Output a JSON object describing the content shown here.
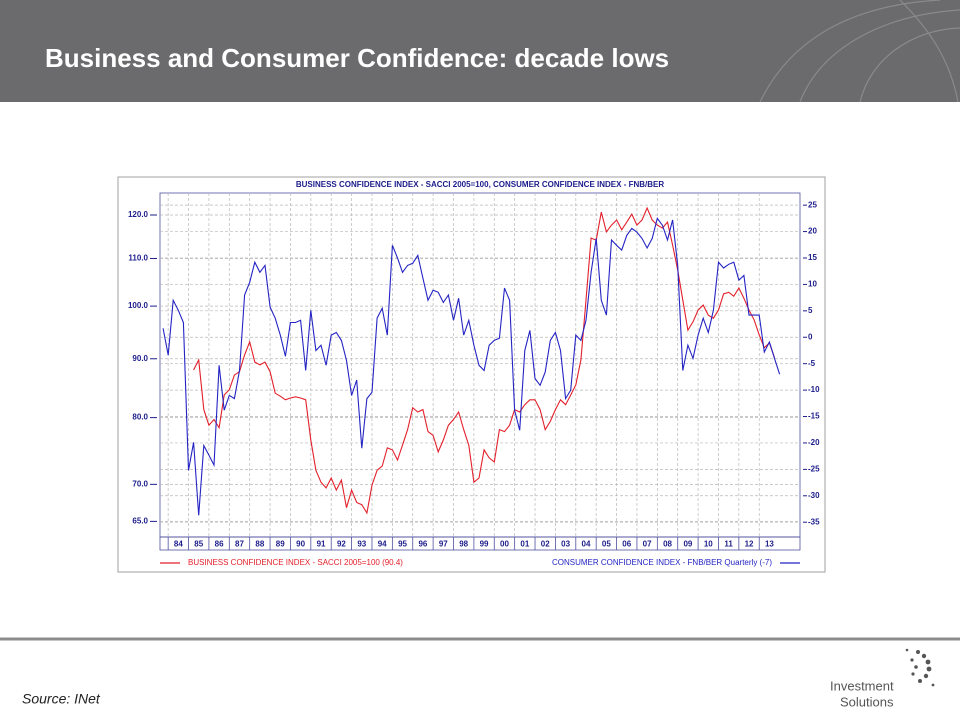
{
  "header": {
    "title": "Business and Consumer Confidence: decade lows"
  },
  "footer": {
    "source": "Source: INet",
    "logo": [
      "Investment",
      "Solutions"
    ]
  },
  "chart_data": {
    "type": "line",
    "title": "BUSINESS CONFIDENCE INDEX - SACCI 2005=100, CONSUMER CONFIDENCE INDEX - FNB/BER",
    "xlim": [
      1983.6,
      2015
    ],
    "xticks": [
      {
        "value": 1984,
        "label": "84"
      },
      {
        "value": 1985,
        "label": "85"
      },
      {
        "value": 1986,
        "label": "86"
      },
      {
        "value": 1987,
        "label": "87"
      },
      {
        "value": 1988,
        "label": "88"
      },
      {
        "value": 1989,
        "label": "89"
      },
      {
        "value": 1990,
        "label": "90"
      },
      {
        "value": 1991,
        "label": "91"
      },
      {
        "value": 1992,
        "label": "92"
      },
      {
        "value": 1993,
        "label": "93"
      },
      {
        "value": 1994,
        "label": "94"
      },
      {
        "value": 1995,
        "label": "95"
      },
      {
        "value": 1996,
        "label": "96"
      },
      {
        "value": 1997,
        "label": "97"
      },
      {
        "value": 1998,
        "label": "98"
      },
      {
        "value": 1999,
        "label": "99"
      },
      {
        "value": 2000,
        "label": "00"
      },
      {
        "value": 2001,
        "label": "01"
      },
      {
        "value": 2002,
        "label": "02"
      },
      {
        "value": 2003,
        "label": "03"
      },
      {
        "value": 2004,
        "label": "04"
      },
      {
        "value": 2005,
        "label": "05"
      },
      {
        "value": 2006,
        "label": "06"
      },
      {
        "value": 2007,
        "label": "07"
      },
      {
        "value": 2008,
        "label": "08"
      },
      {
        "value": 2009,
        "label": "09"
      },
      {
        "value": 2010,
        "label": "10"
      },
      {
        "value": 2011,
        "label": "11"
      },
      {
        "value": 2012,
        "label": "12"
      },
      {
        "value": 2013,
        "label": "13"
      }
    ],
    "ylim": [
      63,
      125.4
    ],
    "ylog": true,
    "yticks": [
      {
        "value": 120,
        "label": "120.0"
      },
      {
        "value": 110,
        "label": "110.0"
      },
      {
        "value": 100,
        "label": "100.0"
      },
      {
        "value": 90,
        "label": "90.0"
      },
      {
        "value": 80,
        "label": "80.0"
      },
      {
        "value": 70,
        "label": "70.0"
      },
      {
        "value": 65,
        "label": "65.0"
      }
    ],
    "y2lim": [
      -37.8,
      27.3
    ],
    "y2ticks": [
      25,
      20,
      15,
      10,
      5,
      0,
      -5,
      -10,
      -15,
      -20,
      -25,
      -30,
      -35
    ],
    "grid": true,
    "series": [
      {
        "name": "BUSINESS CONFIDENCE INDEX - SACCI 2005=100 (90.4)",
        "color": "#e3202a",
        "axis": "y",
        "x": [
          1985.25,
          1985.5,
          1985.75,
          1986,
          1986.25,
          1986.5,
          1986.75,
          1987,
          1987.25,
          1987.5,
          1987.75,
          1988,
          1988.25,
          1988.5,
          1988.75,
          1989,
          1989.25,
          1989.5,
          1989.75,
          1990,
          1990.25,
          1990.5,
          1990.75,
          1991,
          1991.25,
          1991.5,
          1991.75,
          1992,
          1992.25,
          1992.5,
          1992.75,
          1993,
          1993.25,
          1993.5,
          1993.75,
          1994,
          1994.25,
          1994.5,
          1994.75,
          1995,
          1995.25,
          1995.5,
          1995.75,
          1996,
          1996.25,
          1996.5,
          1996.75,
          1997,
          1997.25,
          1997.5,
          1997.75,
          1998,
          1998.25,
          1998.5,
          1998.75,
          1999,
          1999.25,
          1999.5,
          1999.75,
          2000,
          2000.25,
          2000.5,
          2000.75,
          2001,
          2001.25,
          2001.5,
          2001.75,
          2002,
          2002.25,
          2002.5,
          2002.75,
          2003,
          2003.25,
          2003.5,
          2003.75,
          2004,
          2004.25,
          2004.5,
          2004.75,
          2005,
          2005.25,
          2005.5,
          2005.75,
          2006,
          2006.25,
          2006.5,
          2006.75,
          2007,
          2007.25,
          2007.5,
          2007.75,
          2008,
          2008.25,
          2008.5,
          2008.75,
          2009,
          2009.25,
          2009.5,
          2009.75,
          2010,
          2010.25,
          2010.5,
          2010.75,
          2011,
          2011.25,
          2011.5,
          2011.75,
          2012,
          2012.25,
          2012.5,
          2012.75,
          2013,
          2013.25,
          2013.5,
          2013.75
        ],
        "values": [
          88.0,
          89.8,
          81.3,
          78.8,
          79.7,
          78.4,
          83.7,
          84.6,
          87.1,
          87.7,
          90.7,
          93.1,
          89.4,
          88.9,
          89.4,
          87.7,
          84.0,
          83.5,
          82.9,
          83.2,
          83.4,
          83.2,
          82.9,
          76.5,
          72.0,
          70.3,
          69.5,
          70.9,
          69.2,
          70.6,
          66.8,
          69.2,
          67.5,
          67.2,
          66.1,
          69.9,
          72.0,
          72.6,
          75.3,
          75.0,
          73.5,
          75.7,
          78.1,
          81.6,
          80.9,
          81.3,
          77.8,
          77.2,
          74.7,
          76.5,
          78.8,
          79.7,
          80.9,
          78.1,
          75.7,
          70.3,
          70.9,
          75.0,
          73.8,
          73.2,
          78.1,
          77.8,
          78.8,
          81.3,
          80.9,
          82.1,
          82.9,
          82.9,
          81.3,
          78.1,
          79.4,
          81.3,
          82.9,
          82.1,
          83.7,
          85.4,
          89.8,
          101.2,
          114.6,
          114.1,
          120.7,
          116.0,
          117.6,
          118.8,
          116.5,
          118.3,
          120.2,
          117.6,
          118.8,
          121.7,
          118.8,
          117.6,
          116.9,
          118.3,
          113.0,
          107.5,
          101.2,
          95.3,
          96.9,
          99.2,
          100.2,
          98.2,
          97.6,
          99.2,
          102.5,
          102.8,
          102.0,
          103.7,
          101.6,
          99.2,
          97.3,
          94.4,
          92.0,
          92.9,
          90.2
        ]
      },
      {
        "name": "CONSUMER CONFIDENCE INDEX - FNB/BER Quarterly (-7)",
        "color": "#2424c4",
        "axis": "y2",
        "x": [
          1983.75,
          1984,
          1984.25,
          1984.5,
          1984.75,
          1985,
          1985.25,
          1985.5,
          1985.75,
          1986,
          1986.25,
          1986.5,
          1986.75,
          1987,
          1987.25,
          1987.5,
          1987.75,
          1988,
          1988.25,
          1988.5,
          1988.75,
          1989,
          1989.25,
          1989.5,
          1989.75,
          1990,
          1990.25,
          1990.5,
          1990.75,
          1991,
          1991.25,
          1991.5,
          1991.75,
          1992,
          1992.25,
          1992.5,
          1992.75,
          1993,
          1993.25,
          1993.5,
          1993.75,
          1994,
          1994.25,
          1994.5,
          1994.75,
          1995,
          1995.25,
          1995.5,
          1995.75,
          1996,
          1996.25,
          1996.5,
          1996.75,
          1997,
          1997.25,
          1997.5,
          1997.75,
          1998,
          1998.25,
          1998.5,
          1998.75,
          1999,
          1999.25,
          1999.5,
          1999.75,
          2000,
          2000.25,
          2000.5,
          2000.75,
          2001,
          2001.25,
          2001.5,
          2001.75,
          2002,
          2002.25,
          2002.5,
          2002.75,
          2003,
          2003.25,
          2003.5,
          2003.75,
          2004,
          2004.25,
          2004.5,
          2004.75,
          2005,
          2005.25,
          2005.5,
          2005.75,
          2006,
          2006.25,
          2006.5,
          2006.75,
          2007,
          2007.25,
          2007.5,
          2007.75,
          2008,
          2008.25,
          2008.5,
          2008.75,
          2009,
          2009.25,
          2009.5,
          2009.75,
          2010,
          2010.25,
          2010.5,
          2010.75,
          2011,
          2011.25,
          2011.5,
          2011.75,
          2012,
          2012.25,
          2012.5,
          2012.75,
          2013,
          2013.25,
          2013.5,
          2013.75,
          2014
        ],
        "values": [
          1.7,
          -3.4,
          7.0,
          5.1,
          2.8,
          -25.2,
          -19.9,
          -33.7,
          -20.5,
          -22.3,
          -24.2,
          -5.3,
          -13.8,
          -11.0,
          -11.6,
          -6.3,
          8.0,
          10.4,
          14.2,
          12.3,
          13.6,
          5.7,
          3.6,
          0.4,
          -3.6,
          2.8,
          2.8,
          3.2,
          -6.3,
          5.1,
          -2.5,
          -1.5,
          -5.3,
          0.4,
          0.9,
          -0.6,
          -4.4,
          -11.0,
          -8.1,
          -21.0,
          -11.6,
          -10.4,
          3.6,
          5.5,
          0.4,
          17.4,
          15.0,
          12.3,
          13.6,
          14.0,
          15.5,
          11.2,
          7.0,
          8.9,
          8.5,
          6.6,
          8.0,
          3.2,
          7.4,
          0.4,
          3.2,
          -1.5,
          -5.3,
          -6.3,
          -1.5,
          -0.6,
          -0.2,
          9.3,
          7.0,
          -13.8,
          -17.6,
          -2.5,
          1.3,
          -7.8,
          -9.1,
          -6.6,
          -0.6,
          0.9,
          -2.5,
          -11.6,
          -10.0,
          0.4,
          -0.6,
          3.2,
          12.3,
          18.7,
          7.0,
          4.2,
          18.4,
          17.4,
          16.5,
          19.3,
          20.6,
          19.9,
          18.7,
          16.9,
          18.7,
          22.5,
          21.2,
          18.4,
          22.2,
          13.6,
          -6.3,
          -1.5,
          -4.0,
          0.4,
          3.6,
          0.9,
          5.1,
          14.2,
          13.1,
          13.8,
          14.2,
          10.8,
          11.7,
          4.2,
          4.2,
          4.2,
          -2.8,
          -0.9,
          -4.0,
          -7.0
        ]
      }
    ]
  }
}
